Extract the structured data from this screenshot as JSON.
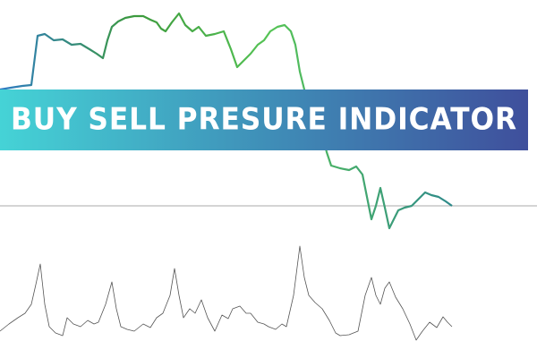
{
  "banner": {
    "title": "BUY SELL PRESURE INDICATOR"
  }
}
